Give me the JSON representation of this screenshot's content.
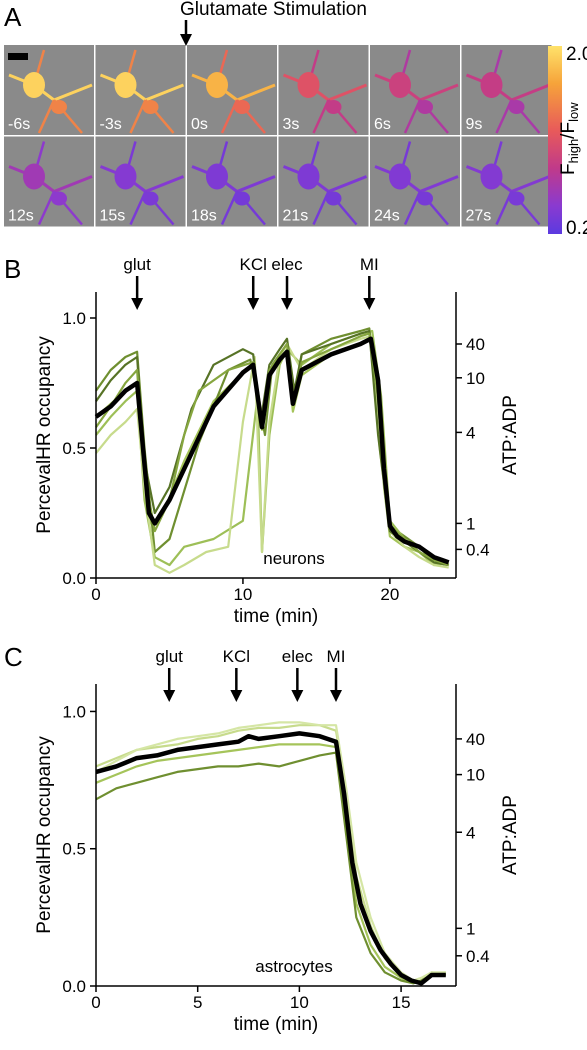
{
  "panel_a": {
    "letter": "A",
    "stimulus_label": "Glutamate Stimulation",
    "frames": [
      "-6s",
      "-3s",
      "0s",
      "3s",
      "6s",
      "9s",
      "12s",
      "15s",
      "18s",
      "21s",
      "24s",
      "27s"
    ],
    "frame_intensity": [
      0.95,
      0.95,
      0.85,
      0.55,
      0.45,
      0.42,
      0.28,
      0.18,
      0.15,
      0.15,
      0.16,
      0.17
    ],
    "colorbar": {
      "max": "2.0",
      "min": "0.2",
      "label": "F",
      "label_sub1": "high",
      "label_mid": "/F",
      "label_sub2": "low",
      "colors": [
        "#ffe26a",
        "#f6a33a",
        "#e85a5a",
        "#c03a8a",
        "#8a3ad0",
        "#5b3ae0"
      ]
    }
  },
  "chart_data": [
    {
      "type": "line",
      "panel": "B",
      "xlabel": "time (min)",
      "ylabel": "PercevalHR occupancy",
      "ylabel_right": "ATP:ADP",
      "xlim": [
        0,
        24.5
      ],
      "ylim": [
        0,
        1.1
      ],
      "x_ticks": [
        "0",
        "10",
        "20"
      ],
      "x_tick_values": [
        0,
        10,
        20
      ],
      "y_ticks": [
        "0.0",
        "0.5",
        "1.0"
      ],
      "y_tick_values": [
        0,
        0.5,
        1.0
      ],
      "right_ticks": [
        "40",
        "10",
        "4",
        "1",
        "0.4"
      ],
      "right_tick_values": [
        0.9,
        0.77,
        0.56,
        0.21,
        0.11
      ],
      "annotation": "neurons",
      "events": [
        {
          "label": "glut",
          "x": 2.8
        },
        {
          "label": "KCl",
          "x": 10.7
        },
        {
          "label": "elec",
          "x": 13.0
        },
        {
          "label": "MI",
          "x": 18.6
        }
      ],
      "series": [
        {
          "values_x": [
            0,
            1,
            2,
            2.8,
            3.2,
            3.7,
            4.5,
            6,
            8,
            10,
            10.7,
            11.3,
            11.8,
            12.5,
            13.0,
            13.4,
            14,
            16,
            18,
            18.7,
            19.2,
            19.6,
            20,
            21,
            22,
            23,
            24
          ],
          "values_y": [
            0.62,
            0.67,
            0.72,
            0.75,
            0.45,
            0.21,
            0.24,
            0.45,
            0.68,
            0.79,
            0.82,
            0.57,
            0.78,
            0.84,
            0.87,
            0.64,
            0.78,
            0.86,
            0.9,
            0.92,
            0.75,
            0.35,
            0.16,
            0.12,
            0.1,
            0.05,
            0.06
          ]
        },
        {
          "values_x": [
            0,
            1,
            2,
            2.8,
            3.3,
            4,
            5,
            7,
            9,
            10.5,
            11,
            11.5,
            12,
            13,
            13.5,
            14,
            16,
            18,
            18.6,
            19.3,
            20,
            21,
            22,
            23,
            24
          ],
          "values_y": [
            0.72,
            0.8,
            0.85,
            0.87,
            0.5,
            0.1,
            0.15,
            0.52,
            0.8,
            0.84,
            0.7,
            0.55,
            0.82,
            0.9,
            0.7,
            0.86,
            0.92,
            0.95,
            0.96,
            0.6,
            0.2,
            0.16,
            0.12,
            0.06,
            0.05
          ]
        },
        {
          "values_x": [
            0,
            1,
            2,
            2.8,
            3.3,
            4,
            5,
            6,
            8,
            10,
            11,
            11.3,
            11.8,
            12.5,
            13,
            14,
            16,
            18,
            18.8,
            19.4,
            20,
            21,
            22,
            23,
            24
          ],
          "values_y": [
            0.55,
            0.62,
            0.68,
            0.72,
            0.3,
            0.08,
            0.05,
            0.12,
            0.15,
            0.22,
            0.7,
            0.1,
            0.55,
            0.82,
            0.88,
            0.82,
            0.9,
            0.94,
            0.95,
            0.7,
            0.22,
            0.15,
            0.1,
            0.06,
            0.05
          ]
        },
        {
          "values_x": [
            0,
            1,
            2,
            2.8,
            3.3,
            4,
            5,
            6,
            7.5,
            9,
            10,
            10.8,
            11.3,
            11.8,
            12.5,
            13,
            14,
            16,
            18,
            18.7,
            19.3,
            20,
            21,
            22,
            23,
            24
          ],
          "values_y": [
            0.48,
            0.55,
            0.6,
            0.65,
            0.35,
            0.05,
            0.02,
            0.05,
            0.1,
            0.12,
            0.6,
            0.85,
            0.1,
            0.6,
            0.85,
            0.9,
            0.8,
            0.88,
            0.92,
            0.93,
            0.5,
            0.18,
            0.12,
            0.08,
            0.05,
            0.04
          ]
        },
        {
          "values_x": [
            0,
            1,
            2,
            2.8,
            3.3,
            4,
            5,
            6.5,
            8,
            10,
            10.7,
            11.2,
            11.8,
            12.5,
            13,
            13.5,
            14,
            16,
            18,
            18.6,
            19.2,
            20,
            21,
            22,
            23,
            24
          ],
          "values_y": [
            0.68,
            0.76,
            0.82,
            0.85,
            0.45,
            0.25,
            0.35,
            0.65,
            0.82,
            0.88,
            0.86,
            0.6,
            0.82,
            0.88,
            0.92,
            0.72,
            0.86,
            0.9,
            0.94,
            0.95,
            0.55,
            0.18,
            0.14,
            0.1,
            0.06,
            0.05
          ]
        },
        {
          "values_x": [
            0,
            1,
            2,
            2.8,
            3.3,
            4,
            5,
            6,
            7,
            9,
            10.7,
            11.3,
            11.8,
            12.5,
            13,
            13.5,
            14,
            16,
            18,
            18.6,
            19.3,
            20,
            21,
            22,
            23,
            24
          ],
          "values_y": [
            0.58,
            0.66,
            0.75,
            0.8,
            0.4,
            0.18,
            0.3,
            0.55,
            0.72,
            0.8,
            0.83,
            0.62,
            0.8,
            0.86,
            0.9,
            0.68,
            0.83,
            0.88,
            0.93,
            0.94,
            0.65,
            0.2,
            0.15,
            0.1,
            0.07,
            0.05
          ]
        },
        {
          "values_x": [
            0,
            1,
            2,
            2.8,
            3.2,
            3.6,
            4,
            5,
            6,
            8,
            10,
            10.7,
            11.3,
            11.8,
            12.5,
            13,
            13.4,
            14,
            16,
            18,
            18.7,
            19.2,
            19.6,
            20,
            20.5,
            21,
            22,
            23,
            23.5,
            24
          ],
          "values_y": [
            0.62,
            0.66,
            0.72,
            0.75,
            0.5,
            0.25,
            0.21,
            0.3,
            0.42,
            0.66,
            0.79,
            0.82,
            0.58,
            0.78,
            0.84,
            0.87,
            0.67,
            0.8,
            0.86,
            0.9,
            0.92,
            0.76,
            0.42,
            0.2,
            0.16,
            0.14,
            0.12,
            0.08,
            0.07,
            0.06
          ]
        }
      ],
      "series_colors": [
        "#a5c45a",
        "#6f8f30",
        "#9dbf57",
        "#c7db8c",
        "#577326",
        "#86a63f",
        "#000000"
      ]
    },
    {
      "type": "line",
      "panel": "C",
      "xlabel": "time (min)",
      "ylabel": "PercevalHR occupancy",
      "ylabel_right": "ATP:ADP",
      "xlim": [
        0,
        17.7
      ],
      "ylim": [
        0,
        1.1
      ],
      "x_ticks": [
        "0",
        "5",
        "10",
        "15"
      ],
      "x_tick_values": [
        0,
        5,
        10,
        15
      ],
      "y_ticks": [
        "0.0",
        "0.5",
        "1.0"
      ],
      "y_tick_values": [
        0,
        0.5,
        1.0
      ],
      "right_ticks": [
        "40",
        "10",
        "4",
        "1",
        "0.4"
      ],
      "right_tick_values": [
        0.9,
        0.77,
        0.56,
        0.21,
        0.11
      ],
      "annotation": "astrocytes",
      "events": [
        {
          "label": "glut",
          "x": 3.6
        },
        {
          "label": "KCl",
          "x": 6.9
        },
        {
          "label": "elec",
          "x": 9.9
        },
        {
          "label": "MI",
          "x": 11.8
        }
      ],
      "series": [
        {
          "values_x": [
            0,
            1,
            2,
            3,
            4,
            5,
            6,
            7,
            8,
            9,
            10,
            11,
            11.8,
            12.3,
            12.8,
            13.5,
            14.2,
            15,
            15.6,
            16,
            16.5,
            17.2
          ],
          "values_y": [
            0.74,
            0.77,
            0.8,
            0.82,
            0.83,
            0.84,
            0.85,
            0.86,
            0.87,
            0.88,
            0.88,
            0.88,
            0.87,
            0.6,
            0.3,
            0.15,
            0.07,
            0.03,
            0.01,
            0.02,
            0.05,
            0.04
          ]
        },
        {
          "values_x": [
            0,
            1,
            2,
            3,
            4,
            5,
            6,
            7,
            8,
            9,
            10,
            11,
            11.8,
            12.3,
            12.8,
            13.5,
            14.2,
            15,
            15.6,
            16,
            16.5,
            17.2
          ],
          "values_y": [
            0.8,
            0.83,
            0.86,
            0.87,
            0.88,
            0.9,
            0.91,
            0.93,
            0.94,
            0.94,
            0.95,
            0.95,
            0.93,
            0.7,
            0.4,
            0.22,
            0.1,
            0.04,
            0.01,
            0.02,
            0.04,
            0.05
          ]
        },
        {
          "values_x": [
            0,
            1,
            2,
            3,
            4,
            5,
            6,
            7,
            8,
            9,
            10,
            11,
            11.8,
            12.3,
            12.8,
            13.5,
            14.2,
            15,
            15.6,
            16,
            16.5,
            17.2
          ],
          "values_y": [
            0.68,
            0.72,
            0.74,
            0.76,
            0.78,
            0.79,
            0.8,
            0.8,
            0.81,
            0.8,
            0.82,
            0.84,
            0.85,
            0.55,
            0.25,
            0.12,
            0.05,
            0.02,
            0.01,
            0.02,
            0.04,
            0.04
          ]
        },
        {
          "values_x": [
            0,
            1,
            2,
            3,
            4,
            5,
            6,
            7,
            8,
            9,
            10,
            11,
            11.8,
            12.3,
            12.8,
            13.5,
            14.2,
            15,
            15.6,
            16,
            16.5,
            17.2
          ],
          "values_y": [
            0.78,
            0.82,
            0.86,
            0.88,
            0.9,
            0.91,
            0.92,
            0.94,
            0.95,
            0.96,
            0.96,
            0.95,
            0.95,
            0.72,
            0.45,
            0.25,
            0.12,
            0.05,
            0.02,
            0.03,
            0.05,
            0.05
          ]
        },
        {
          "values_x": [
            0,
            1,
            2,
            3,
            4,
            5,
            6,
            7,
            7.5,
            8,
            9,
            10,
            11,
            11.8,
            12.2,
            12.6,
            13,
            13.5,
            14,
            14.5,
            15,
            15.5,
            16,
            16.5,
            17.2
          ],
          "values_y": [
            0.78,
            0.8,
            0.83,
            0.84,
            0.86,
            0.87,
            0.88,
            0.89,
            0.91,
            0.9,
            0.91,
            0.92,
            0.91,
            0.89,
            0.7,
            0.45,
            0.3,
            0.2,
            0.13,
            0.08,
            0.04,
            0.02,
            0.01,
            0.04,
            0.04
          ]
        }
      ],
      "series_colors": [
        "#a5c45a",
        "#c7db8c",
        "#6f8f30",
        "#d5e6a5",
        "#000000"
      ]
    }
  ],
  "panel_b": {
    "letter": "B"
  },
  "panel_c": {
    "letter": "C"
  }
}
